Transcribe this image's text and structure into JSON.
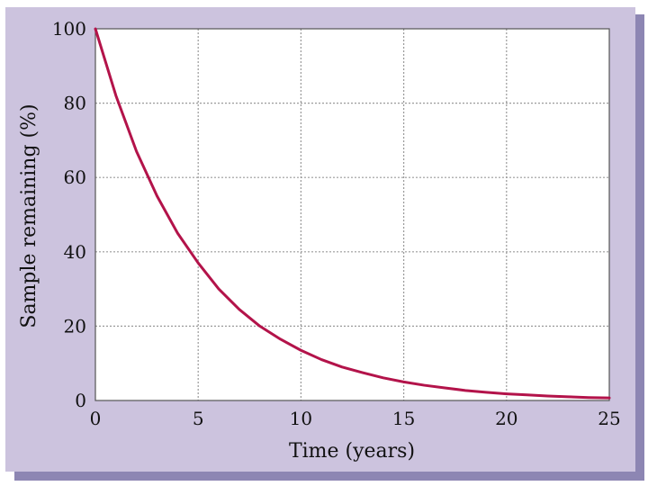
{
  "chart_data": {
    "type": "line",
    "title": "",
    "xlabel": "Time (years)",
    "ylabel": "Sample remaining (%)",
    "xlim": [
      0,
      25
    ],
    "ylim": [
      0,
      100
    ],
    "xticks": [
      "0",
      "5",
      "10",
      "15",
      "20",
      "25"
    ],
    "yticks": [
      "0",
      "20",
      "40",
      "60",
      "80",
      "100"
    ],
    "grid": true,
    "series": [
      {
        "name": "",
        "color": "#b3134a",
        "x": [
          0,
          1,
          2,
          3,
          4,
          5,
          6,
          7,
          8,
          9,
          10,
          11,
          12,
          13,
          14,
          15,
          16,
          17,
          18,
          19,
          20,
          21,
          22,
          23,
          24,
          25
        ],
        "y": [
          100,
          82,
          67,
          55,
          45,
          37,
          30,
          24.5,
          20,
          16.5,
          13.5,
          11,
          9,
          7.5,
          6.1,
          5,
          4.1,
          3.4,
          2.7,
          2.2,
          1.8,
          1.5,
          1.2,
          1,
          0.8,
          0.7
        ]
      }
    ]
  },
  "colors": {
    "frame_background": "#ccc3de",
    "frame_shadow": "#8d86b3",
    "plot_background": "#ffffff",
    "grid": "#9a9a9a",
    "axis": "#555555"
  }
}
